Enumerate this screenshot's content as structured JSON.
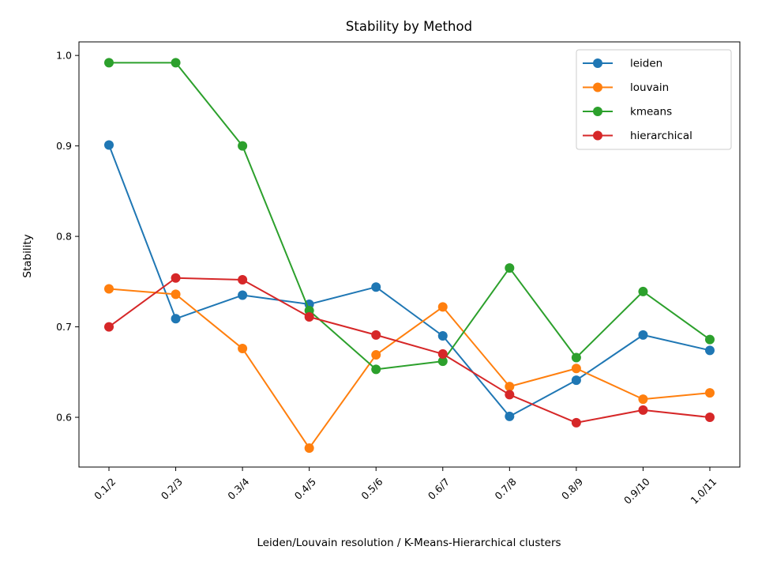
{
  "chart_data": {
    "type": "line",
    "title": "Stability by Method",
    "xlabel": "Leiden/Louvain resolution  /  K-Means-Hierarchical clusters",
    "ylabel": "Stability",
    "categories": [
      "0.1/2",
      "0.2/3",
      "0.3/4",
      "0.4/5",
      "0.5/6",
      "0.6/7",
      "0.7/8",
      "0.8/9",
      "0.9/10",
      "1.0/11"
    ],
    "yticks": [
      "0.6",
      "0.7",
      "0.8",
      "0.9",
      "1.0"
    ],
    "ylim": [
      0.545,
      1.015
    ],
    "grid": false,
    "legend_position": "top-right",
    "series": [
      {
        "name": "leiden",
        "color": "#1f77b4",
        "values": [
          0.901,
          0.709,
          0.735,
          0.725,
          0.744,
          0.69,
          0.601,
          0.641,
          0.691,
          0.674
        ]
      },
      {
        "name": "louvain",
        "color": "#ff7f0e",
        "values": [
          0.742,
          0.736,
          0.676,
          0.566,
          0.669,
          0.722,
          0.634,
          0.654,
          0.62,
          0.627
        ]
      },
      {
        "name": "kmeans",
        "color": "#2ca02c",
        "values": [
          0.992,
          0.992,
          0.9,
          0.718,
          0.653,
          0.662,
          0.765,
          0.666,
          0.739,
          0.686
        ]
      },
      {
        "name": "hierarchical",
        "color": "#d62728",
        "values": [
          0.7,
          0.754,
          0.752,
          0.711,
          0.691,
          0.67,
          0.625,
          0.594,
          0.608,
          0.6
        ]
      }
    ]
  }
}
